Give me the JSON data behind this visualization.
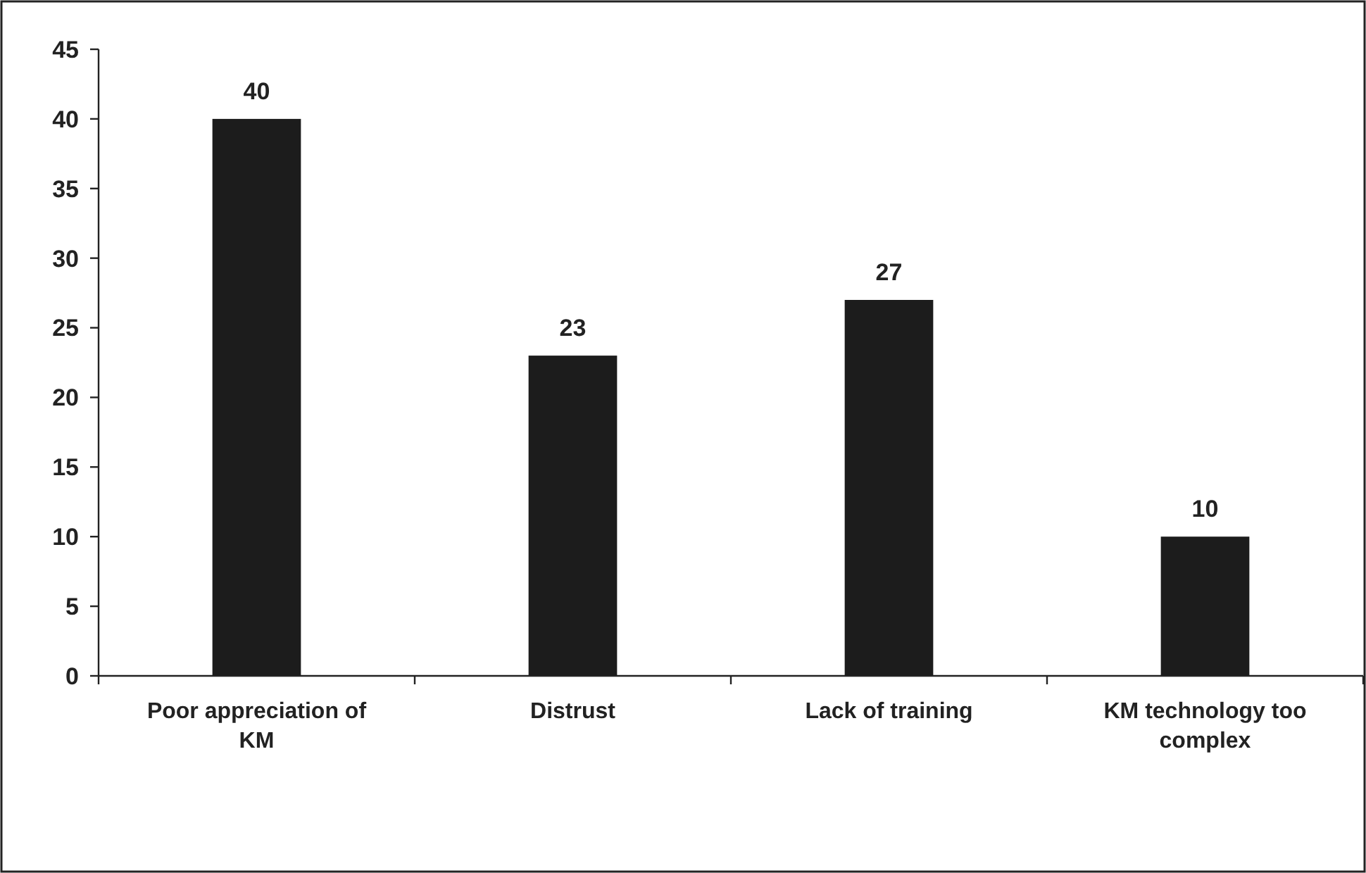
{
  "chart_data": {
    "type": "bar",
    "categories": [
      "Poor appreciation of KM",
      "Distrust",
      "Lack of training",
      "KM technology too complex"
    ],
    "values": [
      40,
      23,
      27,
      10
    ],
    "color": "#1c1c1c",
    "ylim": [
      0,
      45
    ],
    "yticks": [
      0,
      5,
      10,
      15,
      20,
      25,
      30,
      35,
      40,
      45
    ],
    "data_labels": true,
    "grid": false
  }
}
